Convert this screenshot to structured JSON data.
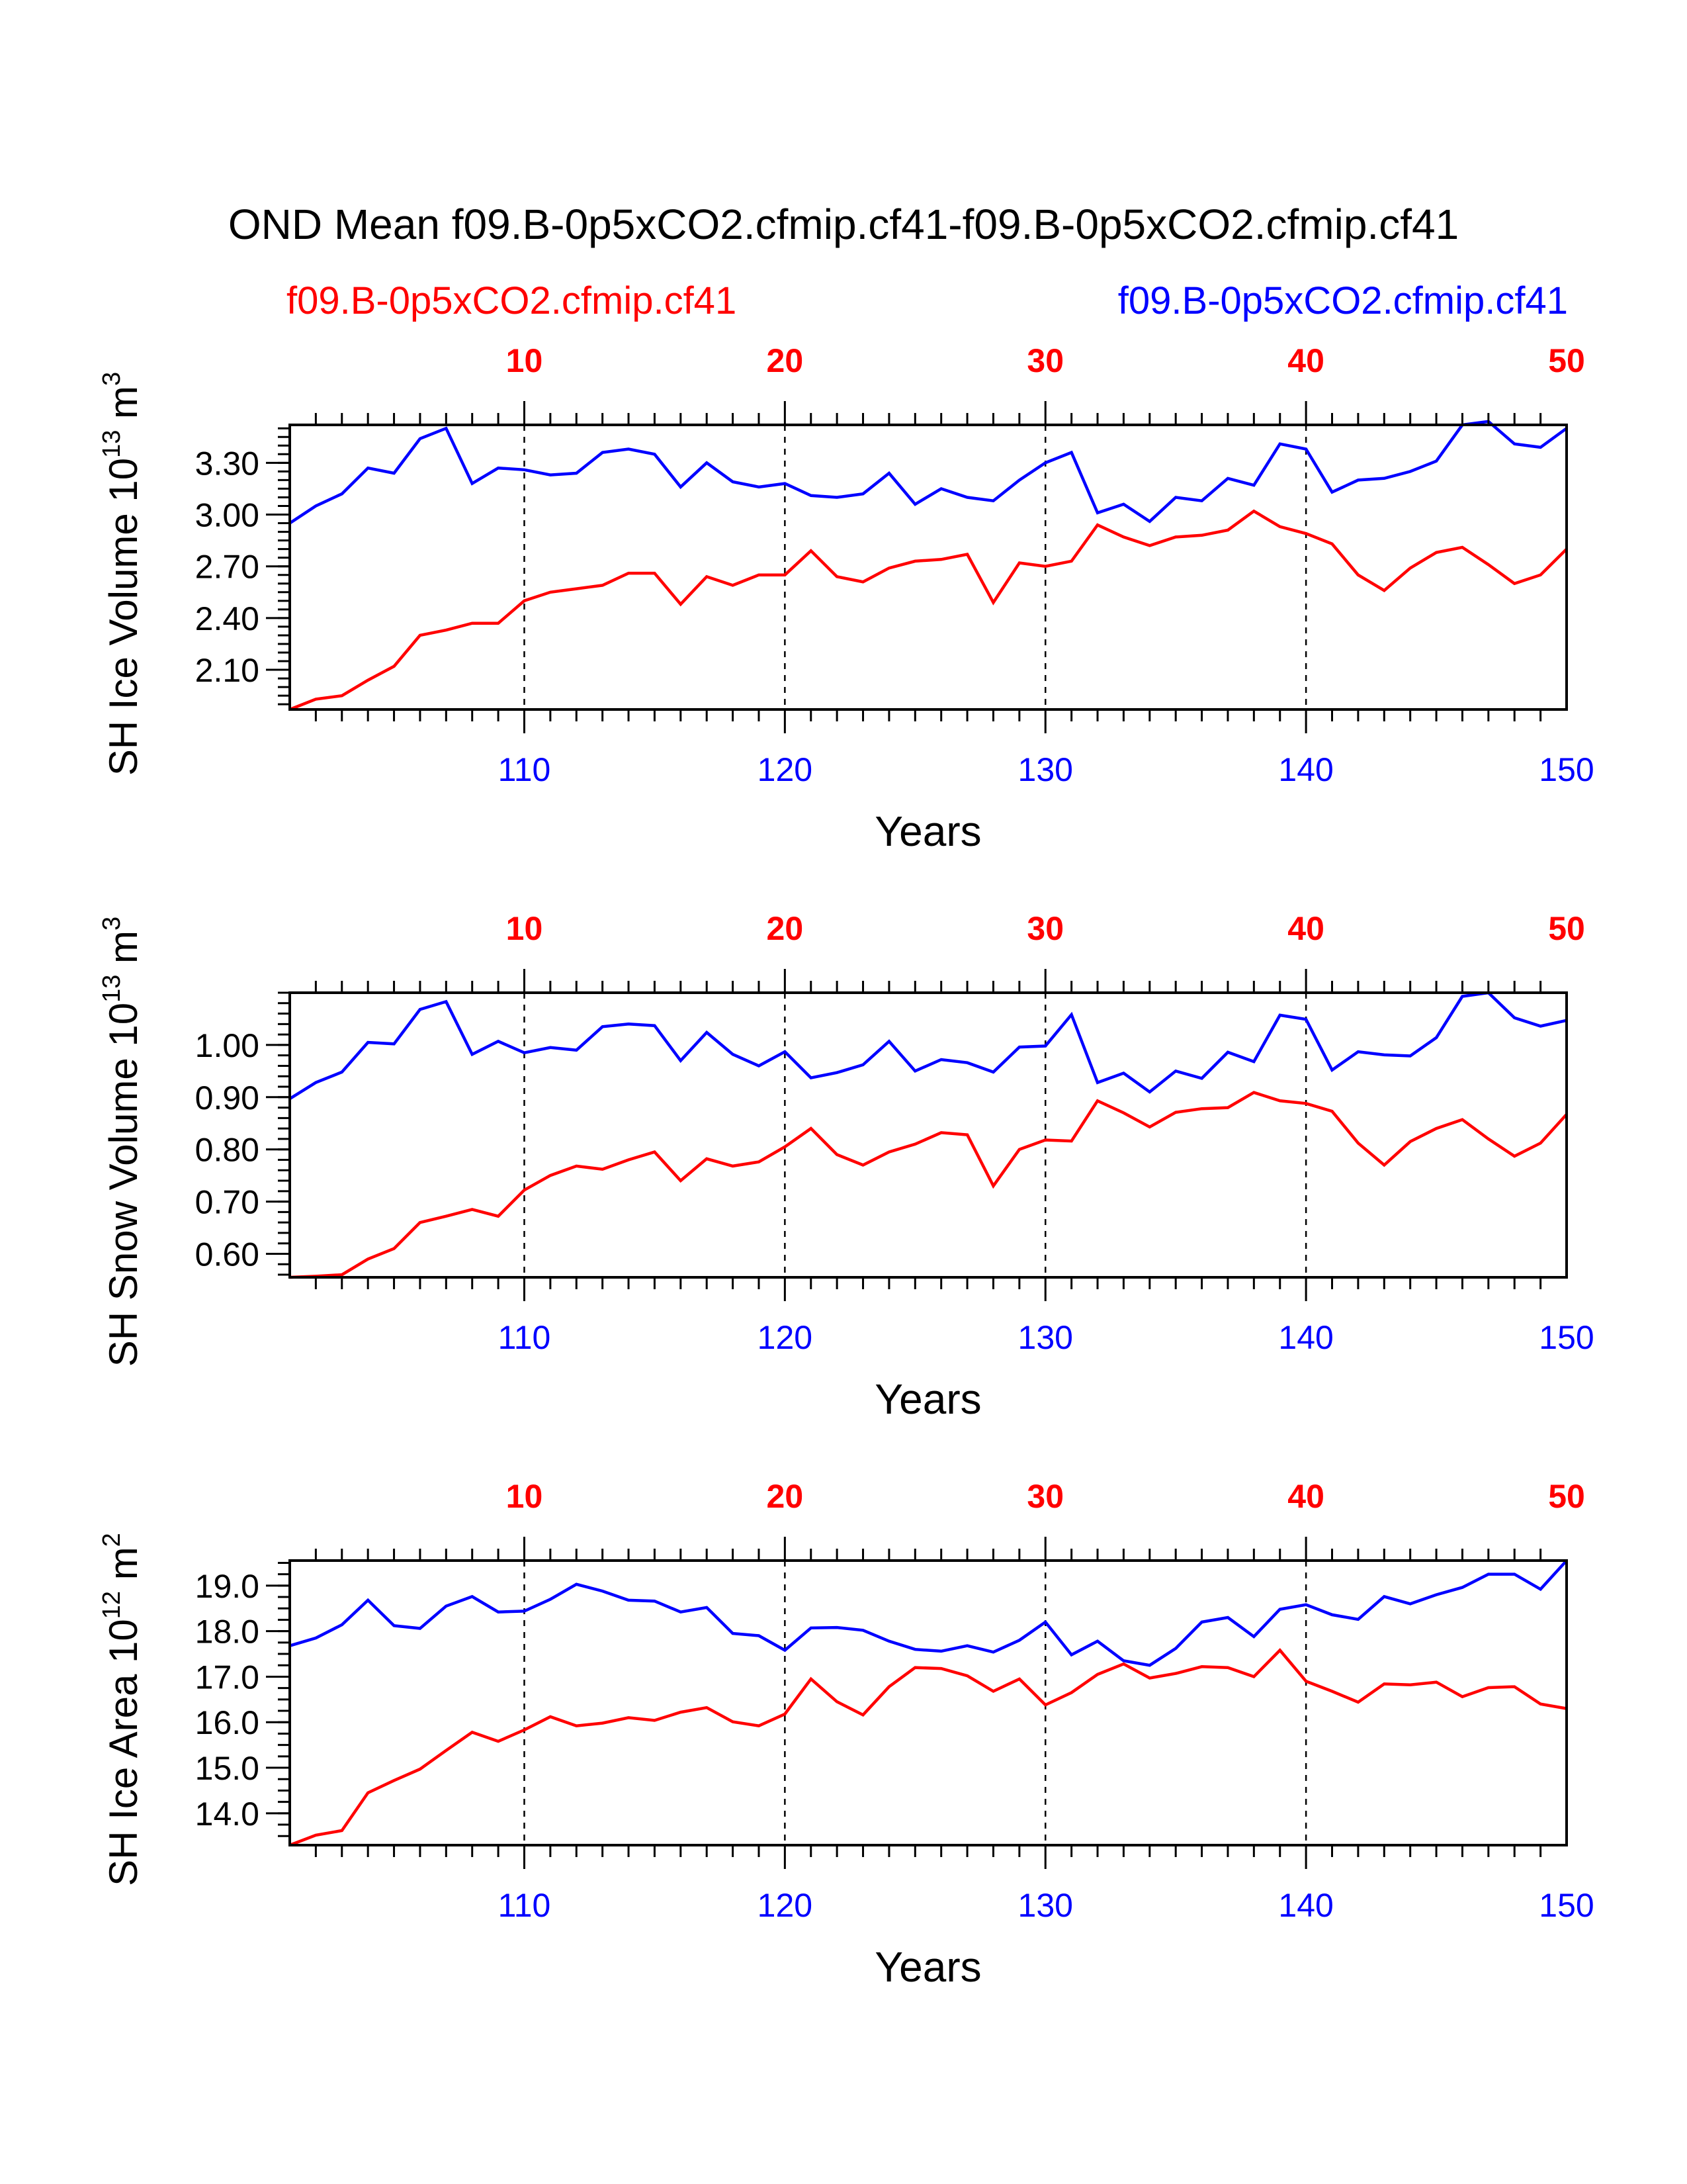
{
  "figure": {
    "main_title": "OND Mean f09.B-0p5xCO2.cfmip.cf41-f09.B-0p5xCO2.cfmip.cf41",
    "left_subtitle": "f09.B-0p5xCO2.cfmip.cf41",
    "right_subtitle": "f09.B-0p5xCO2.cfmip.cf41",
    "colors": {
      "red": "#ff0000",
      "blue": "#0000ff",
      "axis": "#000000"
    }
  },
  "chart_data": [
    {
      "type": "line",
      "ylabel": "SH Ice Volume 10",
      "ylabel_exp": "13",
      "ylabel_unit": "m",
      "ylabel_unit_exp": "3",
      "xlabel": "Years",
      "ylim": [
        1.87,
        3.52
      ],
      "yticks": [
        2.1,
        2.4,
        2.7,
        3.0,
        3.3
      ],
      "ytick_labels": [
        "2.10",
        "2.40",
        "2.70",
        "3.00",
        "3.30"
      ],
      "yminor_step": 0.05,
      "bottom_xlim": [
        101,
        150
      ],
      "bottom_xticks": [
        110,
        120,
        130,
        140,
        150
      ],
      "bottom_tick_labels": [
        "110",
        "120",
        "130",
        "140",
        "150"
      ],
      "top_xlim": [
        1,
        50
      ],
      "top_xticks": [
        10,
        20,
        30,
        40,
        50
      ],
      "top_tick_labels": [
        "10",
        "20",
        "30",
        "40",
        "50"
      ],
      "series": [
        {
          "color": "#ff0000",
          "axis": "top",
          "x_start": 1,
          "values": [
            1.87,
            1.93,
            1.95,
            2.04,
            2.12,
            2.3,
            2.33,
            2.37,
            2.37,
            2.5,
            2.55,
            2.57,
            2.59,
            2.66,
            2.66,
            2.48,
            2.64,
            2.59,
            2.65,
            2.65,
            2.79,
            2.64,
            2.61,
            2.69,
            2.73,
            2.74,
            2.77,
            2.49,
            2.72,
            2.7,
            2.73,
            2.94,
            2.87,
            2.82,
            2.87,
            2.88,
            2.91,
            3.02,
            2.93,
            2.89,
            2.83,
            2.65,
            2.56,
            2.69,
            2.78,
            2.81,
            2.71,
            2.6,
            2.65,
            2.8
          ]
        },
        {
          "color": "#0000ff",
          "axis": "bottom",
          "x_start": 101,
          "values": [
            2.95,
            3.05,
            3.12,
            3.27,
            3.24,
            3.44,
            3.5,
            3.18,
            3.27,
            3.26,
            3.23,
            3.24,
            3.36,
            3.38,
            3.35,
            3.16,
            3.3,
            3.19,
            3.16,
            3.18,
            3.11,
            3.1,
            3.12,
            3.24,
            3.06,
            3.15,
            3.1,
            3.08,
            3.2,
            3.3,
            3.36,
            3.01,
            3.06,
            2.96,
            3.1,
            3.08,
            3.21,
            3.17,
            3.41,
            3.38,
            3.13,
            3.2,
            3.21,
            3.25,
            3.31,
            3.52,
            3.54,
            3.41,
            3.39,
            3.5
          ]
        }
      ]
    },
    {
      "type": "line",
      "ylabel": "SH Snow Volume 10",
      "ylabel_exp": "13",
      "ylabel_unit": "m",
      "ylabel_unit_exp": "3",
      "xlabel": "Years",
      "ylim": [
        0.555,
        1.1
      ],
      "yticks": [
        0.6,
        0.7,
        0.8,
        0.9,
        1.0
      ],
      "ytick_labels": [
        "0.60",
        "0.70",
        "0.80",
        "0.90",
        "1.00"
      ],
      "yminor_step": 0.02,
      "bottom_xlim": [
        101,
        150
      ],
      "bottom_xticks": [
        110,
        120,
        130,
        140,
        150
      ],
      "bottom_tick_labels": [
        "110",
        "120",
        "130",
        "140",
        "150"
      ],
      "top_xlim": [
        1,
        50
      ],
      "top_xticks": [
        10,
        20,
        30,
        40,
        50
      ],
      "top_tick_labels": [
        "10",
        "20",
        "30",
        "40",
        "50"
      ],
      "series": [
        {
          "color": "#ff0000",
          "axis": "top",
          "x_start": 1,
          "values": [
            0.555,
            0.557,
            0.56,
            0.59,
            0.61,
            0.66,
            0.672,
            0.685,
            0.672,
            0.722,
            0.75,
            0.768,
            0.762,
            0.78,
            0.795,
            0.74,
            0.782,
            0.768,
            0.776,
            0.805,
            0.84,
            0.79,
            0.77,
            0.795,
            0.81,
            0.832,
            0.828,
            0.73,
            0.8,
            0.818,
            0.816,
            0.893,
            0.87,
            0.843,
            0.871,
            0.878,
            0.88,
            0.909,
            0.893,
            0.888,
            0.873,
            0.812,
            0.77,
            0.815,
            0.84,
            0.857,
            0.82,
            0.787,
            0.812,
            0.867
          ]
        },
        {
          "color": "#0000ff",
          "axis": "bottom",
          "x_start": 101,
          "values": [
            0.897,
            0.928,
            0.948,
            1.005,
            1.002,
            1.068,
            1.083,
            0.982,
            1.007,
            0.985,
            0.995,
            0.99,
            1.035,
            1.04,
            1.037,
            0.97,
            1.024,
            0.982,
            0.96,
            0.987,
            0.937,
            0.947,
            0.962,
            1.007,
            0.95,
            0.972,
            0.966,
            0.948,
            0.996,
            0.998,
            1.058,
            0.928,
            0.946,
            0.91,
            0.95,
            0.936,
            0.986,
            0.968,
            1.057,
            1.049,
            0.952,
            0.987,
            0.981,
            0.979,
            1.014,
            1.093,
            1.1,
            1.052,
            1.036,
            1.047
          ]
        }
      ]
    },
    {
      "type": "line",
      "ylabel": "SH Ice Area 10",
      "ylabel_exp": "12",
      "ylabel_unit": "m",
      "ylabel_unit_exp": "2",
      "xlabel": "Years",
      "ylim": [
        13.3,
        19.55
      ],
      "yticks": [
        14.0,
        15.0,
        16.0,
        17.0,
        18.0,
        19.0
      ],
      "ytick_labels": [
        "14.0",
        "15.0",
        "16.0",
        "17.0",
        "18.0",
        "19.0"
      ],
      "yminor_step": 0.25,
      "bottom_xlim": [
        101,
        150
      ],
      "bottom_xticks": [
        110,
        120,
        130,
        140,
        150
      ],
      "bottom_tick_labels": [
        "110",
        "120",
        "130",
        "140",
        "150"
      ],
      "top_xlim": [
        1,
        50
      ],
      "top_xticks": [
        10,
        20,
        30,
        40,
        50
      ],
      "top_tick_labels": [
        "10",
        "20",
        "30",
        "40",
        "50"
      ],
      "series": [
        {
          "color": "#ff0000",
          "axis": "top",
          "x_start": 1,
          "values": [
            13.3,
            13.52,
            13.62,
            14.45,
            14.72,
            14.97,
            15.38,
            15.78,
            15.58,
            15.83,
            16.12,
            15.92,
            15.98,
            16.1,
            16.04,
            16.22,
            16.32,
            16.01,
            15.92,
            16.18,
            16.95,
            16.45,
            16.16,
            16.78,
            17.2,
            17.18,
            17.02,
            16.68,
            16.95,
            16.38,
            16.65,
            17.05,
            17.28,
            16.97,
            17.07,
            17.22,
            17.2,
            17.0,
            17.58,
            16.9,
            16.68,
            16.44,
            16.84,
            16.82,
            16.88,
            16.56,
            16.76,
            16.78,
            16.4,
            16.3
          ]
        },
        {
          "color": "#0000ff",
          "axis": "bottom",
          "x_start": 101,
          "values": [
            17.68,
            17.85,
            18.14,
            18.68,
            18.12,
            18.06,
            18.55,
            18.76,
            18.42,
            18.44,
            18.7,
            19.03,
            18.88,
            18.68,
            18.66,
            18.42,
            18.52,
            17.95,
            17.9,
            17.58,
            18.07,
            18.08,
            18.02,
            17.78,
            17.6,
            17.56,
            17.68,
            17.54,
            17.8,
            18.2,
            17.48,
            17.78,
            17.35,
            17.25,
            17.62,
            18.2,
            18.3,
            17.88,
            18.48,
            18.58,
            18.36,
            18.26,
            18.76,
            18.6,
            18.8,
            18.96,
            19.25,
            19.25,
            18.92,
            19.55
          ]
        }
      ]
    }
  ]
}
